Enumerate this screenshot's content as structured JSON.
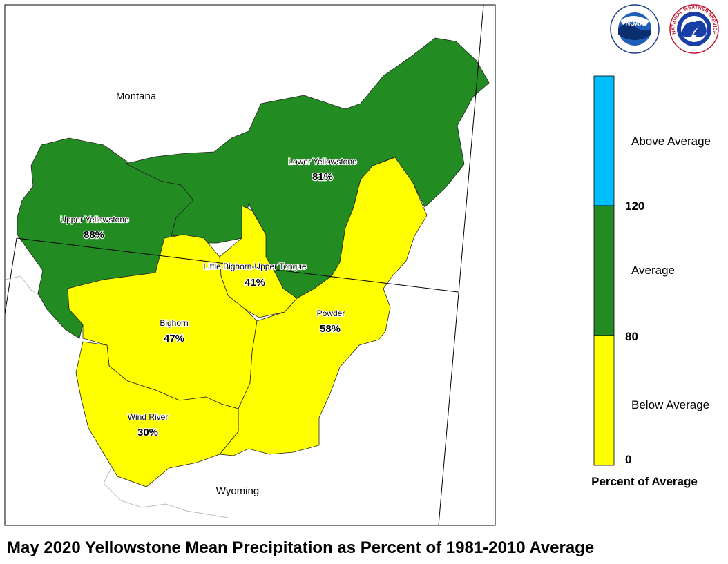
{
  "title": "May 2020 Yellowstone Mean Precipitation as Percent of 1981-2010 Average",
  "states": {
    "montana": "Montana",
    "wyoming": "Wyoming"
  },
  "colors": {
    "above": "#00BFFF",
    "average": "#228B22",
    "below": "#FFFF00"
  },
  "basins": {
    "upper_yellowstone": {
      "name": "Upper Yellowstone",
      "pct": "88%",
      "value": 88,
      "category": "average"
    },
    "lower_yellowstone": {
      "name": "Lower Yellowstone",
      "pct": "81%",
      "value": 81,
      "category": "average"
    },
    "little_bighorn": {
      "name": "Little Bighorn-Upper Tongue",
      "pct": "41%",
      "value": 41,
      "category": "below"
    },
    "bighorn": {
      "name": "Bighorn",
      "pct": "47%",
      "value": 47,
      "category": "below"
    },
    "powder": {
      "name": "Powder",
      "pct": "58%",
      "value": 58,
      "category": "below"
    },
    "wind_river": {
      "name": "Wind River",
      "pct": "30%",
      "value": 30,
      "category": "below"
    }
  },
  "legend": {
    "title": "Percent of Average",
    "categories": {
      "above": "Above Average",
      "average": "Average",
      "below": "Below Average"
    },
    "ticks": {
      "t120": "120",
      "t80": "80",
      "t0": "0"
    }
  },
  "logos": {
    "noaa": "NOAA",
    "nws": "NATIONAL WEATHER SERVICE"
  }
}
